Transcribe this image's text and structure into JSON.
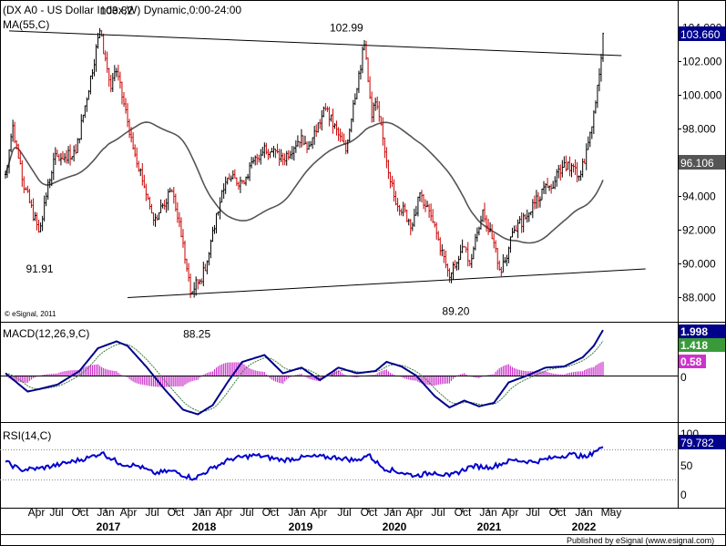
{
  "header": {
    "title": "(DX A0 - US Dollar Index,W) Dynamic,0:00-24:00",
    "ma_label": "MA(55,C)",
    "watermark": "© eSignal, 2011",
    "footer": "Published by eSignal (www.esignal.com)"
  },
  "colors": {
    "up": "#000000",
    "down": "#cc0000",
    "ma": "#555555",
    "macd": "#00008b",
    "macd_signal": "#3a7d3a",
    "histogram": "#cc33cc",
    "rsi": "#0000cc",
    "label_bg_price": "#00008b",
    "label_bg_ma": "#555555",
    "label_bg_signal": "#3a9a3a",
    "label_bg_hist": "#cc33cc"
  },
  "chart_data": [
    {
      "type": "candlestick",
      "title": "(DX A0 - US Dollar Index,W) Dynamic,0:00-24:00",
      "ylim": [
        87,
        105
      ],
      "yticks": [
        "88.000",
        "90.000",
        "92.000",
        "94.000",
        "96.000",
        "98.000",
        "100.000",
        "102.000",
        "104.000"
      ],
      "last_price": "103.660",
      "ma_value": "96.106",
      "annotations": [
        "103.82",
        "102.99",
        "91.91",
        "88.25",
        "89.20"
      ],
      "anchor_weeks": [
        0,
        4,
        9,
        18,
        26,
        38,
        51,
        57,
        60,
        68,
        80,
        90,
        94,
        100,
        108,
        114,
        118,
        121,
        128,
        140,
        150,
        160,
        164,
        173,
        184,
        188,
        194,
        198,
        200,
        210,
        220,
        224,
        231,
        240,
        248,
        251,
        258,
        268,
        275,
        283,
        292,
        297,
        302,
        311,
        315,
        318,
        320,
        322,
        323
      ],
      "anchor_values": [
        95.3,
        98.2,
        95.0,
        91.91,
        96.2,
        96.6,
        103.82,
        100.4,
        101.4,
        97.5,
        92.6,
        94.3,
        92.5,
        88.25,
        89.6,
        93.0,
        94.4,
        95.0,
        94.9,
        97.0,
        96.2,
        97.6,
        97.0,
        99.2,
        96.7,
        99.5,
        102.99,
        98.7,
        99.6,
        94.0,
        92.3,
        94.2,
        92.5,
        89.2,
        91.0,
        90.0,
        93.2,
        89.5,
        92.0,
        93.0,
        94.7,
        94.9,
        96.0,
        95.3,
        97.2,
        99.0,
        100.6,
        102.2,
        103.66
      ],
      "trendlines": [
        {
          "from": [
            2,
            103.82
          ],
          "to": [
            333,
            102.35
          ]
        },
        {
          "from": [
            66,
            88.0
          ],
          "to": [
            346,
            89.7
          ]
        }
      ]
    },
    {
      "type": "line",
      "title": "MACD(12,26,9,C)",
      "series": [
        {
          "name": "MACD",
          "value": "1.998"
        },
        {
          "name": "Signal",
          "value": "1.418"
        },
        {
          "name": "Histogram",
          "value": "0.58"
        }
      ],
      "zero_label": "0",
      "anchor_weeks": [
        0,
        6,
        12,
        18,
        28,
        40,
        50,
        60,
        66,
        76,
        86,
        96,
        104,
        112,
        120,
        128,
        140,
        150,
        160,
        170,
        180,
        190,
        200,
        206,
        214,
        222,
        232,
        240,
        248,
        256,
        264,
        272,
        282,
        292,
        302,
        312,
        318,
        323
      ],
      "anchor_values": [
        0.1,
        -0.3,
        -0.7,
        -0.6,
        -0.4,
        0.2,
        1.2,
        1.5,
        1.3,
        0.4,
        -0.6,
        -1.5,
        -1.7,
        -1.3,
        -0.3,
        0.6,
        0.9,
        0.1,
        0.35,
        -0.2,
        0.35,
        0.1,
        0.2,
        0.6,
        0.4,
        0.0,
        -0.9,
        -1.4,
        -1.1,
        -1.35,
        -1.2,
        -0.3,
        0.0,
        0.35,
        0.4,
        0.8,
        1.3,
        1.998
      ]
    },
    {
      "type": "line",
      "title": "RSI(14,C)",
      "value": "79.782",
      "yticks": [
        "100",
        "50",
        "0"
      ],
      "ylim": [
        0,
        100
      ],
      "anchor_weeks": [
        0,
        8,
        18,
        30,
        45,
        52,
        62,
        72,
        80,
        90,
        102,
        112,
        122,
        135,
        150,
        165,
        180,
        190,
        196,
        204,
        214,
        222,
        232,
        240,
        252,
        262,
        274,
        286,
        296,
        306,
        314,
        318,
        323
      ],
      "anchor_values": [
        55,
        42,
        44,
        51,
        62,
        70,
        52,
        48,
        36,
        40,
        27,
        45,
        60,
        66,
        58,
        64,
        62,
        57,
        67,
        45,
        37,
        32,
        38,
        31,
        48,
        46,
        58,
        55,
        62,
        68,
        62,
        72,
        79.782
      ]
    }
  ],
  "xaxis": {
    "months": [
      "Apr",
      "Jul",
      "Oct",
      "Jan",
      "Apr",
      "Jul",
      "Oct",
      "Jan",
      "Apr",
      "Jul",
      "Oct",
      "Jan",
      "Apr",
      "Jul",
      "Oct",
      "Jan",
      "Apr",
      "Jul",
      "Oct",
      "Jan",
      "Apr",
      "Jul",
      "Oct",
      "Jan",
      "May"
    ],
    "years": [
      "2017",
      "2018",
      "2019",
      "2020",
      "2021",
      "2022"
    ]
  }
}
